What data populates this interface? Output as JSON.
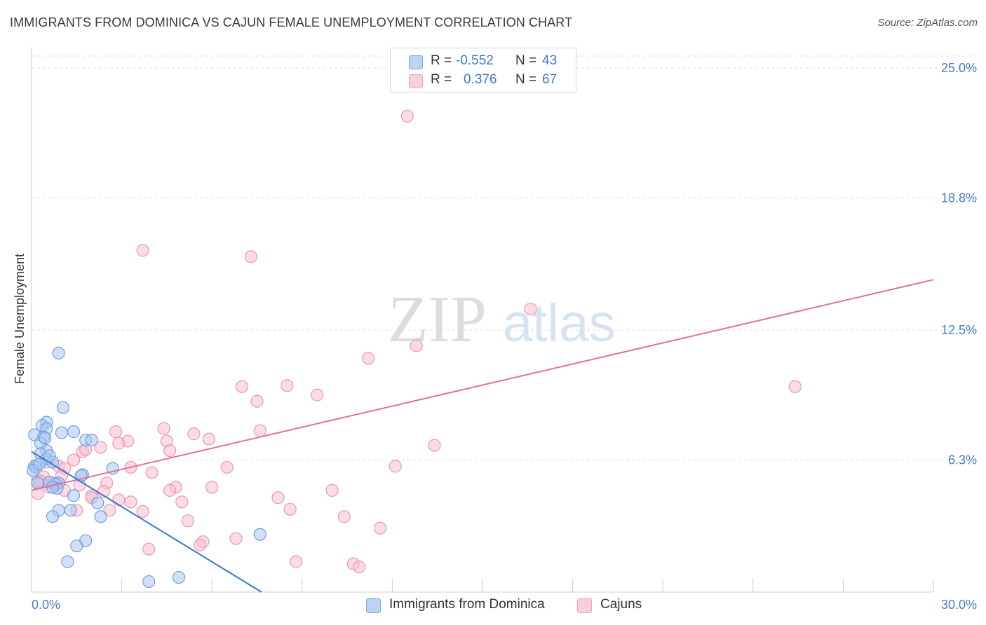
{
  "title": "IMMIGRANTS FROM DOMINICA VS CAJUN FEMALE UNEMPLOYMENT CORRELATION CHART",
  "source": "Source: ZipAtlas.com",
  "colors": {
    "blue_fill": "#a9c7f0",
    "blue_stroke": "#6f9fe0",
    "blue_line": "#3a78d0",
    "pink_fill": "#f7bfd0",
    "pink_stroke": "#ea98b3",
    "pink_line": "#e0709a",
    "tick": "#4a7cc7",
    "grid": "#dddddd"
  },
  "legend": {
    "rows": [
      {
        "r_label": "R =",
        "r_value": "-0.552",
        "n_label": "N =",
        "n_value": "43"
      },
      {
        "r_label": "R =",
        "r_value": "0.376",
        "n_label": "N =",
        "n_value": "67"
      }
    ]
  },
  "bottom_legend": {
    "series1": "Immigrants from Dominica",
    "series2": "Cajuns"
  },
  "watermark": {
    "part1": "ZIP",
    "part2": "atlas"
  },
  "chart_data": {
    "type": "scatter",
    "ylabel": "Female Unemployment",
    "xlabel": "",
    "xlim": [
      0,
      30
    ],
    "ylim": [
      0,
      25.0
    ],
    "x_tick_labels": [
      {
        "value": 0,
        "label": "0.0%"
      },
      {
        "value": 30,
        "label": "30.0%"
      }
    ],
    "x_minor_ticks": [
      3,
      6,
      9,
      12,
      15,
      18,
      21,
      24,
      27,
      30
    ],
    "y_ticks": [
      {
        "value": 6.3,
        "label": "6.3%"
      },
      {
        "value": 12.5,
        "label": "12.5%"
      },
      {
        "value": 18.8,
        "label": "18.8%"
      },
      {
        "value": 25.0,
        "label": "25.0%"
      }
    ],
    "series": [
      {
        "name": "Immigrants from Dominica",
        "R": -0.552,
        "N": 43,
        "trendline": {
          "x0": 0.0,
          "y0": 6.7,
          "x1": 7.65,
          "y1": 0.0
        },
        "points": [
          [
            0.9,
            11.4
          ],
          [
            1.05,
            8.8
          ],
          [
            0.5,
            8.1
          ],
          [
            0.35,
            7.95
          ],
          [
            0.5,
            7.8
          ],
          [
            0.1,
            7.5
          ],
          [
            0.4,
            7.4
          ],
          [
            1.0,
            7.6
          ],
          [
            1.4,
            7.65
          ],
          [
            1.8,
            7.25
          ],
          [
            2.0,
            7.25
          ],
          [
            0.3,
            7.1
          ],
          [
            0.5,
            6.75
          ],
          [
            0.3,
            6.6
          ],
          [
            0.5,
            6.35
          ],
          [
            0.7,
            6.2
          ],
          [
            0.1,
            6.0
          ],
          [
            0.15,
            5.95
          ],
          [
            0.05,
            5.8
          ],
          [
            2.7,
            5.9
          ],
          [
            1.7,
            5.6
          ],
          [
            1.65,
            5.55
          ],
          [
            0.6,
            5.25
          ],
          [
            0.2,
            5.2
          ],
          [
            0.9,
            5.2
          ],
          [
            0.8,
            5.15
          ],
          [
            0.85,
            4.95
          ],
          [
            0.7,
            5.0
          ],
          [
            1.4,
            4.6
          ],
          [
            2.2,
            4.25
          ],
          [
            1.3,
            3.9
          ],
          [
            0.9,
            3.9
          ],
          [
            0.7,
            3.6
          ],
          [
            2.3,
            3.6
          ],
          [
            7.6,
            2.75
          ],
          [
            1.8,
            2.45
          ],
          [
            1.5,
            2.2
          ],
          [
            1.2,
            1.45
          ],
          [
            3.9,
            0.5
          ],
          [
            4.9,
            0.7
          ],
          [
            0.45,
            7.35
          ],
          [
            0.25,
            6.1
          ],
          [
            0.6,
            6.5
          ]
        ]
      },
      {
        "name": "Cajuns",
        "R": 0.376,
        "N": 67,
        "trendline": {
          "x0": 0.0,
          "y0": 4.85,
          "x1": 30.0,
          "y1": 14.9
        },
        "points": [
          [
            12.5,
            22.7
          ],
          [
            3.7,
            16.3
          ],
          [
            7.3,
            16.0
          ],
          [
            16.6,
            13.5
          ],
          [
            12.8,
            11.75
          ],
          [
            11.2,
            11.15
          ],
          [
            25.4,
            9.8
          ],
          [
            8.5,
            9.85
          ],
          [
            7.0,
            9.8
          ],
          [
            9.5,
            9.4
          ],
          [
            7.5,
            9.1
          ],
          [
            4.4,
            7.8
          ],
          [
            5.4,
            7.55
          ],
          [
            7.6,
            7.7
          ],
          [
            2.8,
            7.65
          ],
          [
            3.2,
            7.2
          ],
          [
            2.9,
            7.1
          ],
          [
            4.5,
            7.2
          ],
          [
            5.9,
            7.3
          ],
          [
            13.4,
            7.0
          ],
          [
            2.3,
            6.9
          ],
          [
            4.6,
            6.75
          ],
          [
            1.7,
            6.7
          ],
          [
            1.8,
            6.8
          ],
          [
            1.4,
            6.3
          ],
          [
            0.9,
            6.0
          ],
          [
            1.1,
            5.9
          ],
          [
            3.3,
            5.95
          ],
          [
            6.5,
            5.95
          ],
          [
            12.1,
            6.0
          ],
          [
            4.0,
            5.7
          ],
          [
            0.4,
            5.5
          ],
          [
            1.0,
            5.55
          ],
          [
            0.2,
            5.3
          ],
          [
            0.7,
            5.2
          ],
          [
            2.5,
            5.2
          ],
          [
            4.8,
            5.0
          ],
          [
            6.0,
            5.0
          ],
          [
            10.0,
            4.85
          ],
          [
            2.4,
            4.8
          ],
          [
            4.6,
            4.85
          ],
          [
            1.1,
            4.85
          ],
          [
            0.2,
            4.7
          ],
          [
            2.0,
            4.6
          ],
          [
            2.0,
            4.5
          ],
          [
            2.9,
            4.4
          ],
          [
            3.3,
            4.3
          ],
          [
            5.0,
            4.3
          ],
          [
            8.2,
            4.5
          ],
          [
            8.6,
            3.95
          ],
          [
            1.5,
            3.9
          ],
          [
            2.6,
            3.9
          ],
          [
            3.7,
            3.85
          ],
          [
            10.4,
            3.6
          ],
          [
            5.2,
            3.4
          ],
          [
            11.6,
            3.05
          ],
          [
            5.7,
            2.4
          ],
          [
            5.6,
            2.25
          ],
          [
            6.8,
            2.55
          ],
          [
            3.9,
            2.05
          ],
          [
            8.8,
            1.45
          ],
          [
            10.7,
            1.35
          ],
          [
            10.9,
            1.2
          ],
          [
            0.3,
            5.3
          ],
          [
            0.6,
            5.0
          ],
          [
            0.5,
            6.2
          ],
          [
            1.6,
            5.1
          ]
        ]
      }
    ]
  }
}
